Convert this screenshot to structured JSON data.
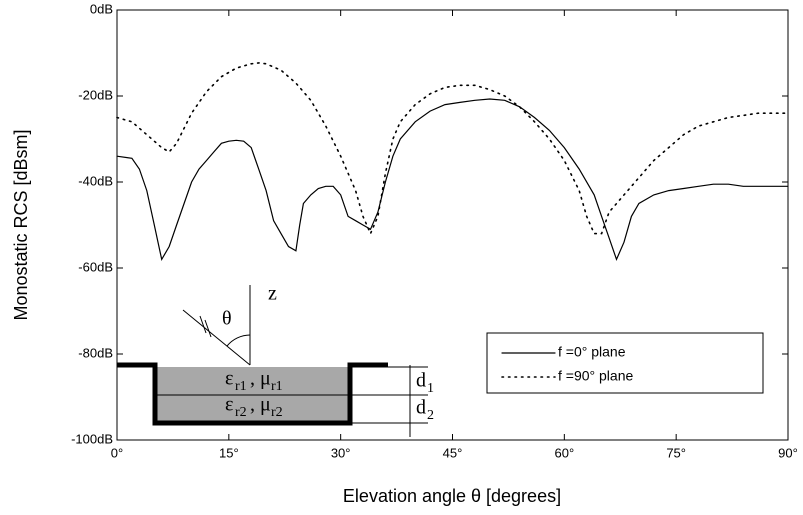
{
  "chart_data": {
    "type": "line",
    "xlabel": "Elevation angle θ [degrees]",
    "ylabel": "Monostatic RCS [dBsm]",
    "xlim": [
      0,
      90
    ],
    "ylim": [
      -100,
      0
    ],
    "xticks": [
      {
        "value": 0,
        "label": "0°"
      },
      {
        "value": 15,
        "label": "15°"
      },
      {
        "value": 30,
        "label": "30°"
      },
      {
        "value": 45,
        "label": "45°"
      },
      {
        "value": 60,
        "label": "60°"
      },
      {
        "value": 75,
        "label": "75°"
      },
      {
        "value": 90,
        "label": "90°"
      }
    ],
    "yticks": [
      {
        "value": -100,
        "label": "-100dB"
      },
      {
        "value": -80,
        "label": "-80dB"
      },
      {
        "value": -60,
        "label": "-60dB"
      },
      {
        "value": -40,
        "label": "-40dB"
      },
      {
        "value": -20,
        "label": "-20dB"
      },
      {
        "value": 0,
        "label": "0dB"
      }
    ],
    "series": [
      {
        "name": "f =0° plane",
        "color": "#000000",
        "dash": "solid",
        "x": [
          0,
          2,
          3,
          4,
          5,
          5.5,
          6,
          7,
          8,
          9,
          10,
          11,
          12,
          13,
          14,
          15,
          16,
          17,
          18,
          19,
          20,
          21,
          22,
          23,
          24,
          24.5,
          25,
          26,
          27,
          28,
          29,
          30,
          31,
          32,
          33,
          34,
          35,
          36,
          37,
          38,
          40,
          42,
          44,
          46,
          48,
          50,
          52,
          54,
          56,
          58,
          60,
          62,
          64,
          65,
          66,
          67,
          68,
          69,
          70,
          72,
          74,
          76,
          78,
          80,
          82,
          84,
          86,
          88,
          90
        ],
        "values": [
          -34,
          -34.5,
          -37,
          -42,
          -50,
          -54,
          -58,
          -55,
          -50,
          -45,
          -40,
          -37,
          -35,
          -33,
          -31,
          -30.5,
          -30.3,
          -30.5,
          -32,
          -37,
          -42,
          -49,
          -52,
          -55,
          -56,
          -50,
          -45,
          -43,
          -41.5,
          -41,
          -41,
          -43,
          -48,
          -49,
          -50,
          -51,
          -47,
          -40,
          -34,
          -30,
          -26,
          -23.5,
          -22,
          -21.5,
          -21,
          -20.7,
          -21,
          -22.5,
          -25,
          -28,
          -32,
          -37,
          -43,
          -48,
          -53,
          -58,
          -54,
          -48,
          -45,
          -43,
          -42,
          -41.5,
          -41,
          -40.5,
          -40.5,
          -41,
          -41,
          -41,
          -41
        ]
      },
      {
        "name": "f =90° plane",
        "color": "#000000",
        "dash": "dotted",
        "x": [
          0,
          2,
          4,
          6,
          7,
          8,
          10,
          12,
          14,
          16,
          18,
          19,
          20,
          22,
          24,
          26,
          28,
          30,
          32,
          33,
          34,
          35,
          36,
          37,
          38,
          40,
          42,
          44,
          46,
          48,
          50,
          52,
          54,
          56,
          58,
          60,
          62,
          63,
          64,
          65,
          66,
          68,
          70,
          72,
          74,
          76,
          78,
          80,
          82,
          84,
          86,
          88,
          90
        ],
        "values": [
          -25,
          -26,
          -29,
          -32,
          -33,
          -31,
          -24,
          -19,
          -15.5,
          -13.5,
          -12.5,
          -12.3,
          -12.5,
          -14,
          -17,
          -21,
          -27,
          -34,
          -42,
          -48,
          -52,
          -48,
          -38,
          -30,
          -26,
          -22,
          -19.5,
          -18,
          -17.5,
          -17.5,
          -18.5,
          -20,
          -22.5,
          -26,
          -30,
          -35,
          -42,
          -48,
          -52,
          -52,
          -47,
          -43,
          -39,
          -35,
          -32,
          -29,
          -27,
          -26,
          -25,
          -24.5,
          -24,
          -24,
          -24
        ]
      }
    ],
    "annotations": {
      "z": "z",
      "theta": "θ",
      "eps1": "ε",
      "eps1_sub": "r1",
      "mu1": ", μ",
      "mu1_sub": "r1",
      "eps2": "ε",
      "eps2_sub": "r2",
      "mu2": ", μ",
      "mu2_sub": "r2",
      "d1": "d",
      "d1_sub": "1",
      "d2": "d",
      "d2_sub": "2"
    }
  }
}
